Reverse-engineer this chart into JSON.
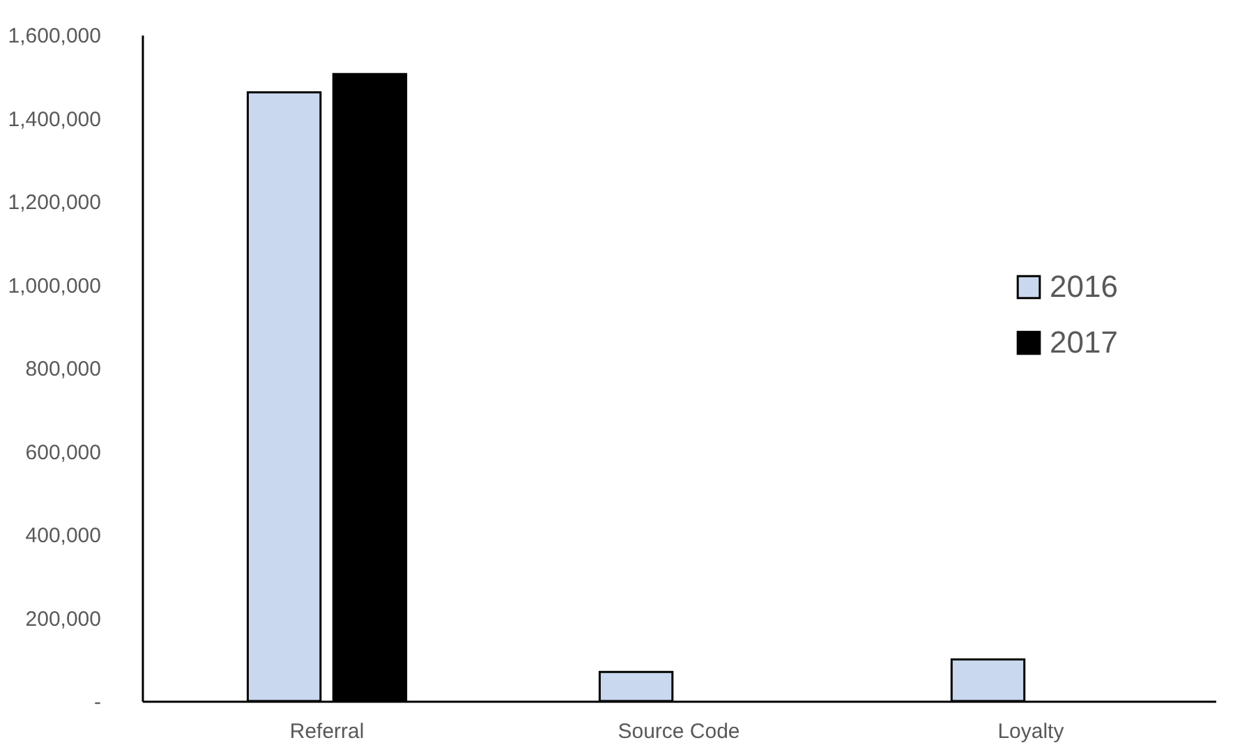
{
  "chart_data": {
    "type": "bar",
    "categories": [
      "Referral",
      "Source Code",
      "Loyalty"
    ],
    "series": [
      {
        "name": "2016",
        "color": "#c9d8ee",
        "values": [
          1462000,
          70000,
          100000
        ]
      },
      {
        "name": "2017",
        "color": "#000000",
        "values": [
          1506000,
          null,
          null
        ]
      }
    ],
    "ylim": [
      0,
      1600000
    ],
    "yticks": [
      {
        "value": 0,
        "label": "-"
      },
      {
        "value": 200000,
        "label": "200,000"
      },
      {
        "value": 400000,
        "label": "400,000"
      },
      {
        "value": 600000,
        "label": "600,000"
      },
      {
        "value": 800000,
        "label": "800,000"
      },
      {
        "value": 1000000,
        "label": "1,000,000"
      },
      {
        "value": 1200000,
        "label": "1,200,000"
      },
      {
        "value": 1400000,
        "label": "1,400,000"
      },
      {
        "value": 1600000,
        "label": "1,600,000"
      }
    ],
    "grid": false,
    "legend": "right"
  }
}
